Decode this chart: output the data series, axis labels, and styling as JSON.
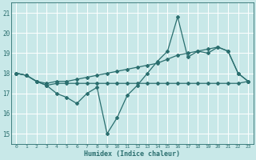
{
  "xlabel": "Humidex (Indice chaleur)",
  "xlim": [
    -0.5,
    23.5
  ],
  "ylim": [
    14.5,
    21.5
  ],
  "yticks": [
    15,
    16,
    17,
    18,
    19,
    20,
    21
  ],
  "xticks": [
    0,
    1,
    2,
    3,
    4,
    5,
    6,
    7,
    8,
    9,
    10,
    11,
    12,
    13,
    14,
    15,
    16,
    17,
    18,
    19,
    20,
    21,
    22,
    23
  ],
  "background_color": "#c8e8e8",
  "grid_color": "#b0d8d8",
  "line_color": "#2a6e6e",
  "lines": [
    {
      "x": [
        0,
        1,
        2,
        3,
        4,
        5,
        6,
        7,
        8,
        9,
        10,
        11,
        12,
        13,
        14,
        15,
        16,
        17,
        18,
        19,
        20,
        21,
        22,
        23
      ],
      "y": [
        18.0,
        17.9,
        17.6,
        17.4,
        17.5,
        17.5,
        17.5,
        17.5,
        17.5,
        17.5,
        17.5,
        17.5,
        17.5,
        17.5,
        17.5,
        17.5,
        17.5,
        17.5,
        17.5,
        17.5,
        17.5,
        17.5,
        17.5,
        17.6
      ]
    },
    {
      "x": [
        0,
        1,
        2,
        3,
        4,
        5,
        6,
        7,
        8,
        9,
        10,
        11,
        12,
        13,
        14,
        15,
        16,
        17,
        18,
        19,
        20,
        21,
        22,
        23
      ],
      "y": [
        18.0,
        17.9,
        17.6,
        17.5,
        17.6,
        17.6,
        17.7,
        17.8,
        17.9,
        18.0,
        18.1,
        18.2,
        18.3,
        18.4,
        18.5,
        18.7,
        18.9,
        19.0,
        19.1,
        19.2,
        19.3,
        19.1,
        18.0,
        17.6
      ]
    },
    {
      "x": [
        0,
        1,
        2,
        3,
        4,
        5,
        6,
        7,
        8,
        9,
        10,
        11,
        12,
        13,
        14,
        15,
        16,
        17,
        18,
        19,
        20,
        21,
        22,
        23
      ],
      "y": [
        18.0,
        17.9,
        17.6,
        17.4,
        17.0,
        16.8,
        16.5,
        17.0,
        17.3,
        15.0,
        15.8,
        16.9,
        17.4,
        18.0,
        18.6,
        19.1,
        20.8,
        18.8,
        19.1,
        19.0,
        19.3,
        19.1,
        18.0,
        17.6
      ]
    }
  ]
}
